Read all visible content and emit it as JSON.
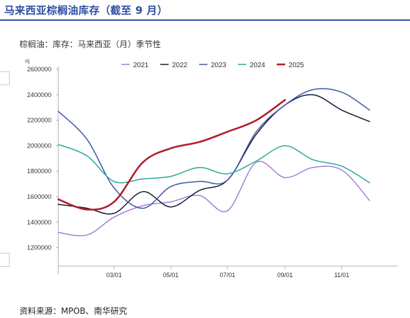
{
  "header": {
    "title": "马来西亚棕榈油库存（截至 9 月）"
  },
  "subtitle": "棕榈油：库存：马来西亚（月）季节性",
  "source": "资料来源：MPOB、南华研究",
  "chart_data": {
    "type": "line",
    "title": "棕榈油：库存：马来西亚（月）季节性",
    "ylabel": "吨",
    "xlabel": "",
    "x_tick_labels": [
      "03/01",
      "05/01",
      "07/01",
      "09/01",
      "11/01"
    ],
    "y_tick_labels": [
      "1200000",
      "1400000",
      "1600000",
      "1800000",
      "2000000",
      "2200000",
      "2400000",
      "2600000"
    ],
    "ylim": [
      1100000,
      2600000
    ],
    "grid": false,
    "legend_position": "top",
    "series": [
      {
        "name": "2021",
        "color": "#a67ed8",
        "points": [
          [
            "01-01",
            1320000
          ],
          [
            "02-01",
            1300000
          ],
          [
            "03-01",
            1440000
          ],
          [
            "04-01",
            1530000
          ],
          [
            "05-01",
            1560000
          ],
          [
            "06-01",
            1610000
          ],
          [
            "07-01",
            1490000
          ],
          [
            "08-01",
            1870000
          ],
          [
            "09-01",
            1750000
          ],
          [
            "10-01",
            1830000
          ],
          [
            "11-01",
            1810000
          ],
          [
            "12-01",
            1570000
          ]
        ]
      },
      {
        "name": "2022",
        "color": "#141c33",
        "points": [
          [
            "01-01",
            1540000
          ],
          [
            "02-01",
            1510000
          ],
          [
            "03-01",
            1470000
          ],
          [
            "04-01",
            1640000
          ],
          [
            "05-01",
            1520000
          ],
          [
            "06-01",
            1650000
          ],
          [
            "07-01",
            1730000
          ],
          [
            "08-01",
            2090000
          ],
          [
            "09-01",
            2320000
          ],
          [
            "10-01",
            2400000
          ],
          [
            "11-01",
            2280000
          ],
          [
            "12-01",
            2190000
          ]
        ]
      },
      {
        "name": "2023",
        "color": "#3f56a6",
        "points": [
          [
            "01-01",
            2270000
          ],
          [
            "02-01",
            2050000
          ],
          [
            "03-01",
            1670000
          ],
          [
            "04-01",
            1510000
          ],
          [
            "05-01",
            1680000
          ],
          [
            "06-01",
            1720000
          ],
          [
            "07-01",
            1730000
          ],
          [
            "08-01",
            2110000
          ],
          [
            "09-01",
            2320000
          ],
          [
            "10-01",
            2440000
          ],
          [
            "11-01",
            2420000
          ],
          [
            "12-01",
            2280000
          ]
        ]
      },
      {
        "name": "2024",
        "color": "#2aaa9a",
        "points": [
          [
            "01-01",
            2010000
          ],
          [
            "02-01",
            1920000
          ],
          [
            "03-01",
            1720000
          ],
          [
            "04-01",
            1740000
          ],
          [
            "05-01",
            1760000
          ],
          [
            "06-01",
            1830000
          ],
          [
            "07-01",
            1780000
          ],
          [
            "08-01",
            1880000
          ],
          [
            "09-01",
            2000000
          ],
          [
            "10-01",
            1890000
          ],
          [
            "11-01",
            1840000
          ],
          [
            "12-01",
            1710000
          ]
        ]
      },
      {
        "name": "2025",
        "color": "#b41d2e",
        "points": [
          [
            "01-01",
            1580000
          ],
          [
            "02-01",
            1500000
          ],
          [
            "03-01",
            1560000
          ],
          [
            "04-01",
            1870000
          ],
          [
            "05-01",
            1980000
          ],
          [
            "06-01",
            2030000
          ],
          [
            "07-01",
            2110000
          ],
          [
            "08-01",
            2200000
          ],
          [
            "09-01",
            2360000
          ]
        ]
      }
    ]
  }
}
